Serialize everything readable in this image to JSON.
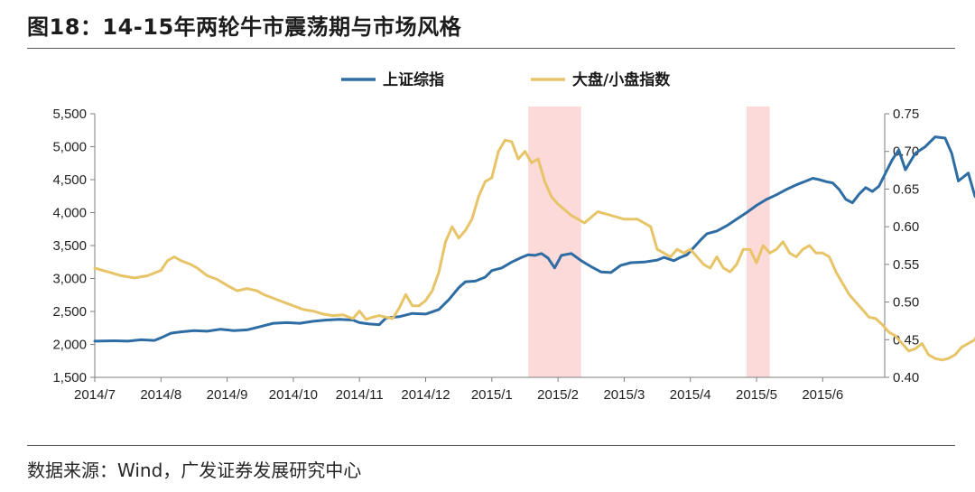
{
  "title": "图18：14-15年两轮牛市震荡期与市场风格",
  "source": "数据来源：Wind，广发证券发展研究中心",
  "colors": {
    "sh_index": "#2e6da4",
    "ratio": "#e8c468",
    "shade": "#fcdada",
    "axis": "#7f7f7f"
  },
  "chart_data": {
    "type": "line",
    "legend_position": "top-center",
    "x_ticks": [
      "2014/7",
      "2014/8",
      "2014/9",
      "2014/10",
      "2014/11",
      "2014/12",
      "2015/1",
      "2015/2",
      "2015/3",
      "2015/4",
      "2015/5",
      "2015/6"
    ],
    "y_left": {
      "ylim": [
        1500,
        5500
      ],
      "ticks": [
        "1,500",
        "2,000",
        "2,500",
        "3,000",
        "3,500",
        "4,000",
        "4,500",
        "5,000",
        "5,500"
      ]
    },
    "y_right": {
      "ylim": [
        0.4,
        0.75
      ],
      "ticks": [
        "0.40",
        "0.45",
        "0.50",
        "0.55",
        "0.60",
        "0.65",
        "0.70",
        "0.75"
      ]
    },
    "shaded_periods": [
      {
        "start": "2015/1 (late)",
        "end": "2015/2 (mid)",
        "x_index": [
          6.55,
          7.35
        ]
      },
      {
        "start": "2015/4 (late)",
        "end": "2015/5 (early)",
        "x_index": [
          9.85,
          10.2
        ]
      }
    ],
    "series": [
      {
        "name": "上证综指",
        "axis": "left",
        "points": [
          [
            0,
            2050
          ],
          [
            0.3,
            2055
          ],
          [
            0.5,
            2050
          ],
          [
            0.7,
            2070
          ],
          [
            0.9,
            2060
          ],
          [
            1.0,
            2100
          ],
          [
            1.15,
            2170
          ],
          [
            1.3,
            2190
          ],
          [
            1.5,
            2210
          ],
          [
            1.7,
            2200
          ],
          [
            1.9,
            2230
          ],
          [
            2.1,
            2210
          ],
          [
            2.3,
            2220
          ],
          [
            2.5,
            2270
          ],
          [
            2.7,
            2320
          ],
          [
            2.9,
            2330
          ],
          [
            3.1,
            2320
          ],
          [
            3.3,
            2350
          ],
          [
            3.5,
            2370
          ],
          [
            3.7,
            2380
          ],
          [
            3.9,
            2370
          ],
          [
            4.0,
            2330
          ],
          [
            4.15,
            2310
          ],
          [
            4.3,
            2300
          ],
          [
            4.4,
            2400
          ],
          [
            4.6,
            2420
          ],
          [
            4.8,
            2470
          ],
          [
            5.0,
            2460
          ],
          [
            5.2,
            2530
          ],
          [
            5.35,
            2680
          ],
          [
            5.5,
            2860
          ],
          [
            5.6,
            2950
          ],
          [
            5.75,
            2960
          ],
          [
            5.9,
            3020
          ],
          [
            6.0,
            3120
          ],
          [
            6.15,
            3160
          ],
          [
            6.3,
            3250
          ],
          [
            6.45,
            3320
          ],
          [
            6.55,
            3360
          ],
          [
            6.65,
            3350
          ],
          [
            6.75,
            3380
          ],
          [
            6.85,
            3310
          ],
          [
            6.95,
            3160
          ],
          [
            7.05,
            3350
          ],
          [
            7.2,
            3380
          ],
          [
            7.35,
            3270
          ],
          [
            7.5,
            3180
          ],
          [
            7.65,
            3100
          ],
          [
            7.8,
            3090
          ],
          [
            7.95,
            3200
          ],
          [
            8.1,
            3240
          ],
          [
            8.3,
            3250
          ],
          [
            8.5,
            3280
          ],
          [
            8.6,
            3320
          ],
          [
            8.75,
            3270
          ],
          [
            8.85,
            3320
          ],
          [
            8.95,
            3360
          ],
          [
            9.05,
            3470
          ],
          [
            9.15,
            3580
          ],
          [
            9.25,
            3680
          ],
          [
            9.4,
            3720
          ],
          [
            9.55,
            3800
          ],
          [
            9.7,
            3900
          ],
          [
            9.85,
            4000
          ],
          [
            10.0,
            4110
          ],
          [
            10.15,
            4200
          ],
          [
            10.3,
            4270
          ],
          [
            10.45,
            4350
          ],
          [
            10.6,
            4420
          ],
          [
            10.75,
            4480
          ],
          [
            10.85,
            4520
          ],
          [
            10.95,
            4500
          ],
          [
            11.05,
            4470
          ],
          [
            11.15,
            4450
          ],
          [
            11.25,
            4350
          ],
          [
            11.35,
            4200
          ],
          [
            11.45,
            4150
          ],
          [
            11.55,
            4280
          ],
          [
            11.65,
            4380
          ],
          [
            11.75,
            4320
          ],
          [
            11.85,
            4400
          ],
          [
            11.95,
            4600
          ],
          [
            12.05,
            4800
          ],
          [
            12.15,
            4950
          ],
          [
            12.25,
            4650
          ],
          [
            12.4,
            4900
          ],
          [
            12.55,
            5000
          ],
          [
            12.7,
            5150
          ],
          [
            12.85,
            5130
          ],
          [
            12.95,
            4900
          ],
          [
            13.05,
            4480
          ],
          [
            13.2,
            4600
          ],
          [
            13.3,
            4250
          ],
          [
            13.4,
            4150
          ],
          [
            13.45,
            4200
          ]
        ]
      },
      {
        "name": "大盘/小盘指数",
        "axis": "right",
        "points": [
          [
            0,
            0.545
          ],
          [
            0.2,
            0.54
          ],
          [
            0.4,
            0.535
          ],
          [
            0.6,
            0.532
          ],
          [
            0.8,
            0.535
          ],
          [
            1.0,
            0.542
          ],
          [
            1.1,
            0.555
          ],
          [
            1.2,
            0.56
          ],
          [
            1.3,
            0.555
          ],
          [
            1.45,
            0.55
          ],
          [
            1.55,
            0.545
          ],
          [
            1.7,
            0.535
          ],
          [
            1.85,
            0.53
          ],
          [
            2.0,
            0.522
          ],
          [
            2.15,
            0.515
          ],
          [
            2.3,
            0.518
          ],
          [
            2.45,
            0.515
          ],
          [
            2.55,
            0.51
          ],
          [
            2.7,
            0.505
          ],
          [
            2.85,
            0.5
          ],
          [
            3.0,
            0.495
          ],
          [
            3.15,
            0.49
          ],
          [
            3.3,
            0.488
          ],
          [
            3.45,
            0.484
          ],
          [
            3.6,
            0.482
          ],
          [
            3.75,
            0.483
          ],
          [
            3.9,
            0.478
          ],
          [
            4.0,
            0.488
          ],
          [
            4.1,
            0.477
          ],
          [
            4.2,
            0.48
          ],
          [
            4.3,
            0.482
          ],
          [
            4.4,
            0.48
          ],
          [
            4.5,
            0.478
          ],
          [
            4.6,
            0.492
          ],
          [
            4.7,
            0.51
          ],
          [
            4.8,
            0.495
          ],
          [
            4.9,
            0.495
          ],
          [
            5.0,
            0.502
          ],
          [
            5.1,
            0.515
          ],
          [
            5.2,
            0.54
          ],
          [
            5.3,
            0.58
          ],
          [
            5.4,
            0.6
          ],
          [
            5.5,
            0.585
          ],
          [
            5.6,
            0.595
          ],
          [
            5.7,
            0.61
          ],
          [
            5.8,
            0.64
          ],
          [
            5.9,
            0.66
          ],
          [
            6.0,
            0.665
          ],
          [
            6.1,
            0.7
          ],
          [
            6.2,
            0.715
          ],
          [
            6.3,
            0.713
          ],
          [
            6.4,
            0.69
          ],
          [
            6.5,
            0.7
          ],
          [
            6.6,
            0.685
          ],
          [
            6.7,
            0.69
          ],
          [
            6.8,
            0.66
          ],
          [
            6.9,
            0.64
          ],
          [
            7.0,
            0.63
          ],
          [
            7.2,
            0.615
          ],
          [
            7.4,
            0.605
          ],
          [
            7.6,
            0.62
          ],
          [
            7.8,
            0.615
          ],
          [
            8.0,
            0.61
          ],
          [
            8.2,
            0.61
          ],
          [
            8.4,
            0.6
          ],
          [
            8.5,
            0.57
          ],
          [
            8.6,
            0.565
          ],
          [
            8.7,
            0.56
          ],
          [
            8.8,
            0.57
          ],
          [
            8.9,
            0.565
          ],
          [
            9.0,
            0.57
          ],
          [
            9.1,
            0.56
          ],
          [
            9.2,
            0.55
          ],
          [
            9.3,
            0.545
          ],
          [
            9.4,
            0.56
          ],
          [
            9.5,
            0.545
          ],
          [
            9.6,
            0.54
          ],
          [
            9.7,
            0.55
          ],
          [
            9.8,
            0.57
          ],
          [
            9.9,
            0.57
          ],
          [
            10.0,
            0.552
          ],
          [
            10.1,
            0.575
          ],
          [
            10.2,
            0.565
          ],
          [
            10.3,
            0.57
          ],
          [
            10.4,
            0.58
          ],
          [
            10.5,
            0.565
          ],
          [
            10.6,
            0.56
          ],
          [
            10.7,
            0.57
          ],
          [
            10.8,
            0.575
          ],
          [
            10.9,
            0.565
          ],
          [
            11.0,
            0.565
          ],
          [
            11.1,
            0.56
          ],
          [
            11.2,
            0.54
          ],
          [
            11.3,
            0.525
          ],
          [
            11.4,
            0.51
          ],
          [
            11.5,
            0.5
          ],
          [
            11.6,
            0.49
          ],
          [
            11.7,
            0.48
          ],
          [
            11.8,
            0.478
          ],
          [
            11.9,
            0.47
          ],
          [
            12.0,
            0.46
          ],
          [
            12.1,
            0.455
          ],
          [
            12.2,
            0.445
          ],
          [
            12.3,
            0.435
          ],
          [
            12.4,
            0.438
          ],
          [
            12.5,
            0.445
          ],
          [
            12.6,
            0.43
          ],
          [
            12.7,
            0.425
          ],
          [
            12.8,
            0.423
          ],
          [
            12.9,
            0.425
          ],
          [
            13.0,
            0.43
          ],
          [
            13.1,
            0.44
          ],
          [
            13.2,
            0.445
          ],
          [
            13.3,
            0.45
          ],
          [
            13.4,
            0.47
          ],
          [
            13.45,
            0.475
          ]
        ]
      }
    ]
  }
}
